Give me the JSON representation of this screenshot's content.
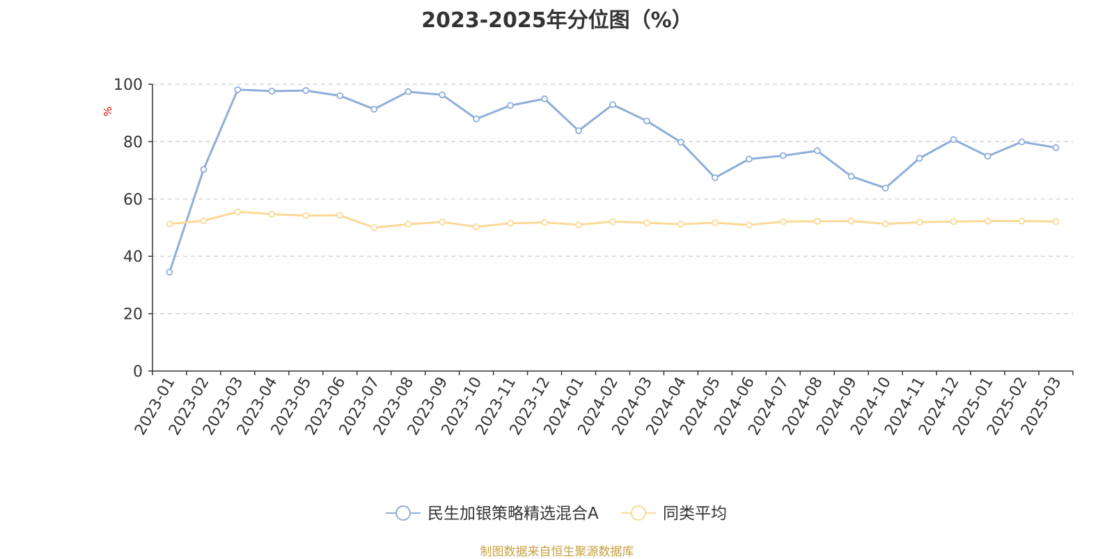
{
  "colors": {
    "series1": "#8eaed9",
    "series2": "#fbd996",
    "source": "#c8a040",
    "axis": "#333333",
    "grid": "#cccccc"
  },
  "chart_data": {
    "type": "line",
    "title": "2023-2025年分位图（%）",
    "ylabel": "%",
    "xlabel": "",
    "ylim": [
      0,
      100
    ],
    "yticks": [
      0,
      20,
      40,
      60,
      80,
      100
    ],
    "grid": true,
    "legend_position": "bottom",
    "x": [
      "2023-01",
      "2023-02",
      "2023-03",
      "2023-04",
      "2023-05",
      "2023-06",
      "2023-07",
      "2023-08",
      "2023-09",
      "2023-10",
      "2023-11",
      "2023-12",
      "2024-01",
      "2024-02",
      "2024-03",
      "2024-04",
      "2024-05",
      "2024-06",
      "2024-07",
      "2024-08",
      "2024-09",
      "2024-10",
      "2024-11",
      "2024-12",
      "2025-01",
      "2025-02",
      "2025-03"
    ],
    "series": [
      {
        "name": "民生加银策略精选混合A",
        "values": [
          34.5,
          70.3,
          98.1,
          97.6,
          97.8,
          96.0,
          91.3,
          97.4,
          96.3,
          87.9,
          92.6,
          94.9,
          83.8,
          92.9,
          87.2,
          79.8,
          67.4,
          73.9,
          75.1,
          76.8,
          67.9,
          63.8,
          74.2,
          80.7,
          74.9,
          79.9,
          77.9
        ]
      },
      {
        "name": "同类平均",
        "values": [
          51.3,
          52.4,
          55.5,
          54.7,
          54.2,
          54.3,
          50.0,
          51.2,
          52.0,
          50.3,
          51.5,
          51.8,
          51.0,
          52.1,
          51.7,
          51.2,
          51.7,
          50.9,
          52.1,
          52.2,
          52.3,
          51.3,
          51.9,
          52.1,
          52.3,
          52.3,
          52.1
        ]
      }
    ]
  },
  "source": "制图数据来自恒生聚源数据库"
}
